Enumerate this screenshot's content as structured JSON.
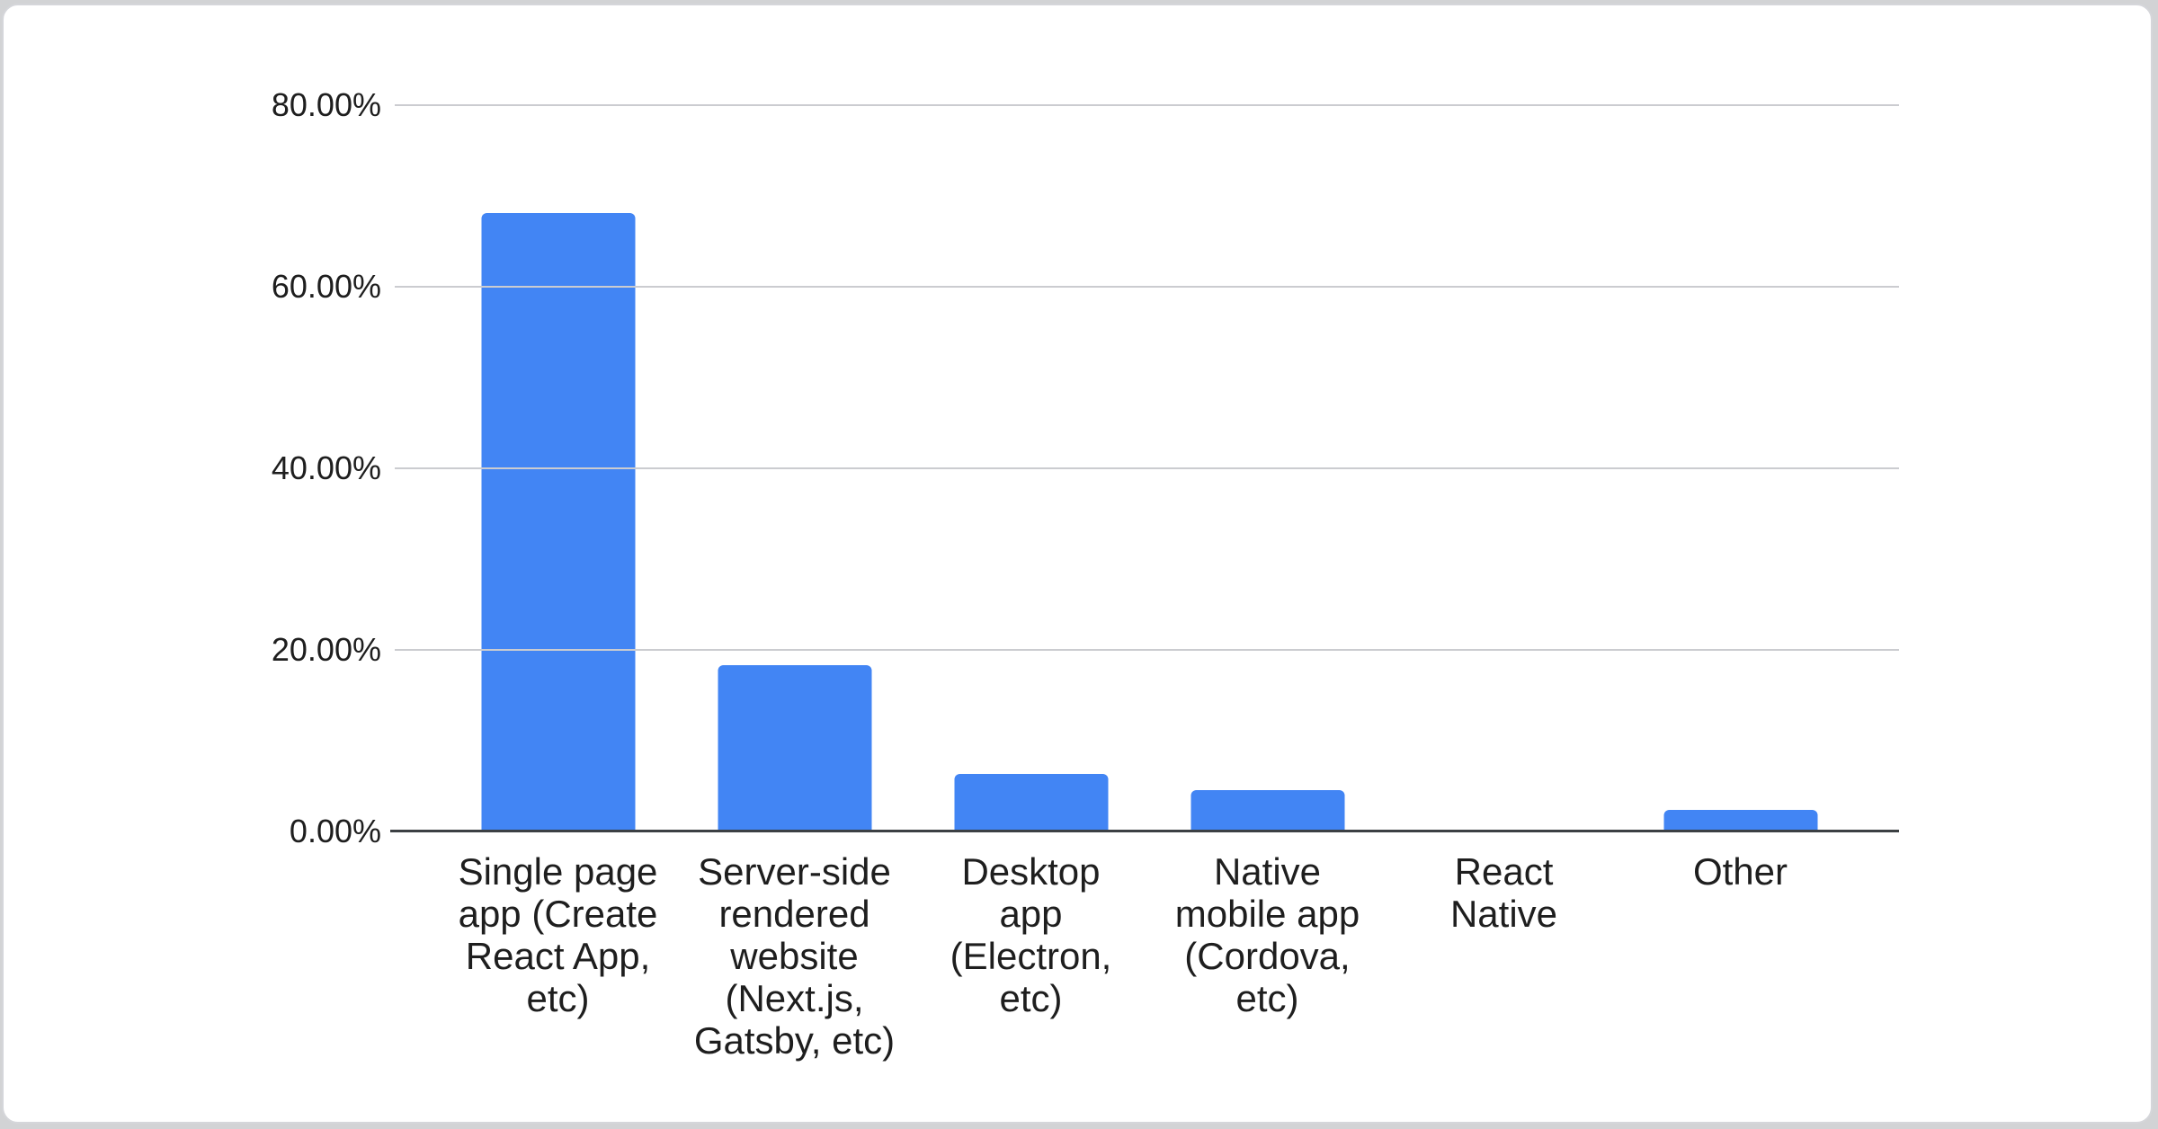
{
  "chart_data": {
    "type": "bar",
    "title": "",
    "xlabel": "",
    "ylabel": "",
    "categories": [
      "Single page app (Create React App, etc)",
      "Server-side rendered website (Next.js, Gatsby, etc)",
      "Desktop app (Electron, etc)",
      "Native mobile app (Cordova, etc)",
      "React Native",
      "Other"
    ],
    "label_lines": [
      [
        "Single page",
        "app (Create",
        "React App,",
        "etc)"
      ],
      [
        "Server-side",
        "rendered",
        "website",
        "(Next.js,",
        "Gatsby, etc)"
      ],
      [
        "Desktop",
        "app",
        "(Electron,",
        "etc)"
      ],
      [
        "Native",
        "mobile app",
        "(Cordova,",
        "etc)"
      ],
      [
        "React",
        "Native"
      ],
      [
        "Other"
      ]
    ],
    "values": [
      68.2,
      18.3,
      6.3,
      4.6,
      0,
      2.4
    ],
    "value_unit": "percent",
    "yticks": [
      {
        "value": 0,
        "label": "0.00%"
      },
      {
        "value": 20,
        "label": "20.00%"
      },
      {
        "value": 40,
        "label": "40.00%"
      },
      {
        "value": 60,
        "label": "60.00%"
      },
      {
        "value": 80,
        "label": "80.00%"
      }
    ],
    "ylim": [
      0,
      84
    ],
    "grid": true,
    "legend_position": "none",
    "colors": {
      "bar": "#4285f4",
      "gridline": "#cbccd0",
      "axis_line": "#3c4043",
      "label_text": "#1e1e1e",
      "card_background": "#ffffff",
      "card_border": "#d5d6da",
      "page_background": "#d2d3d5"
    }
  }
}
